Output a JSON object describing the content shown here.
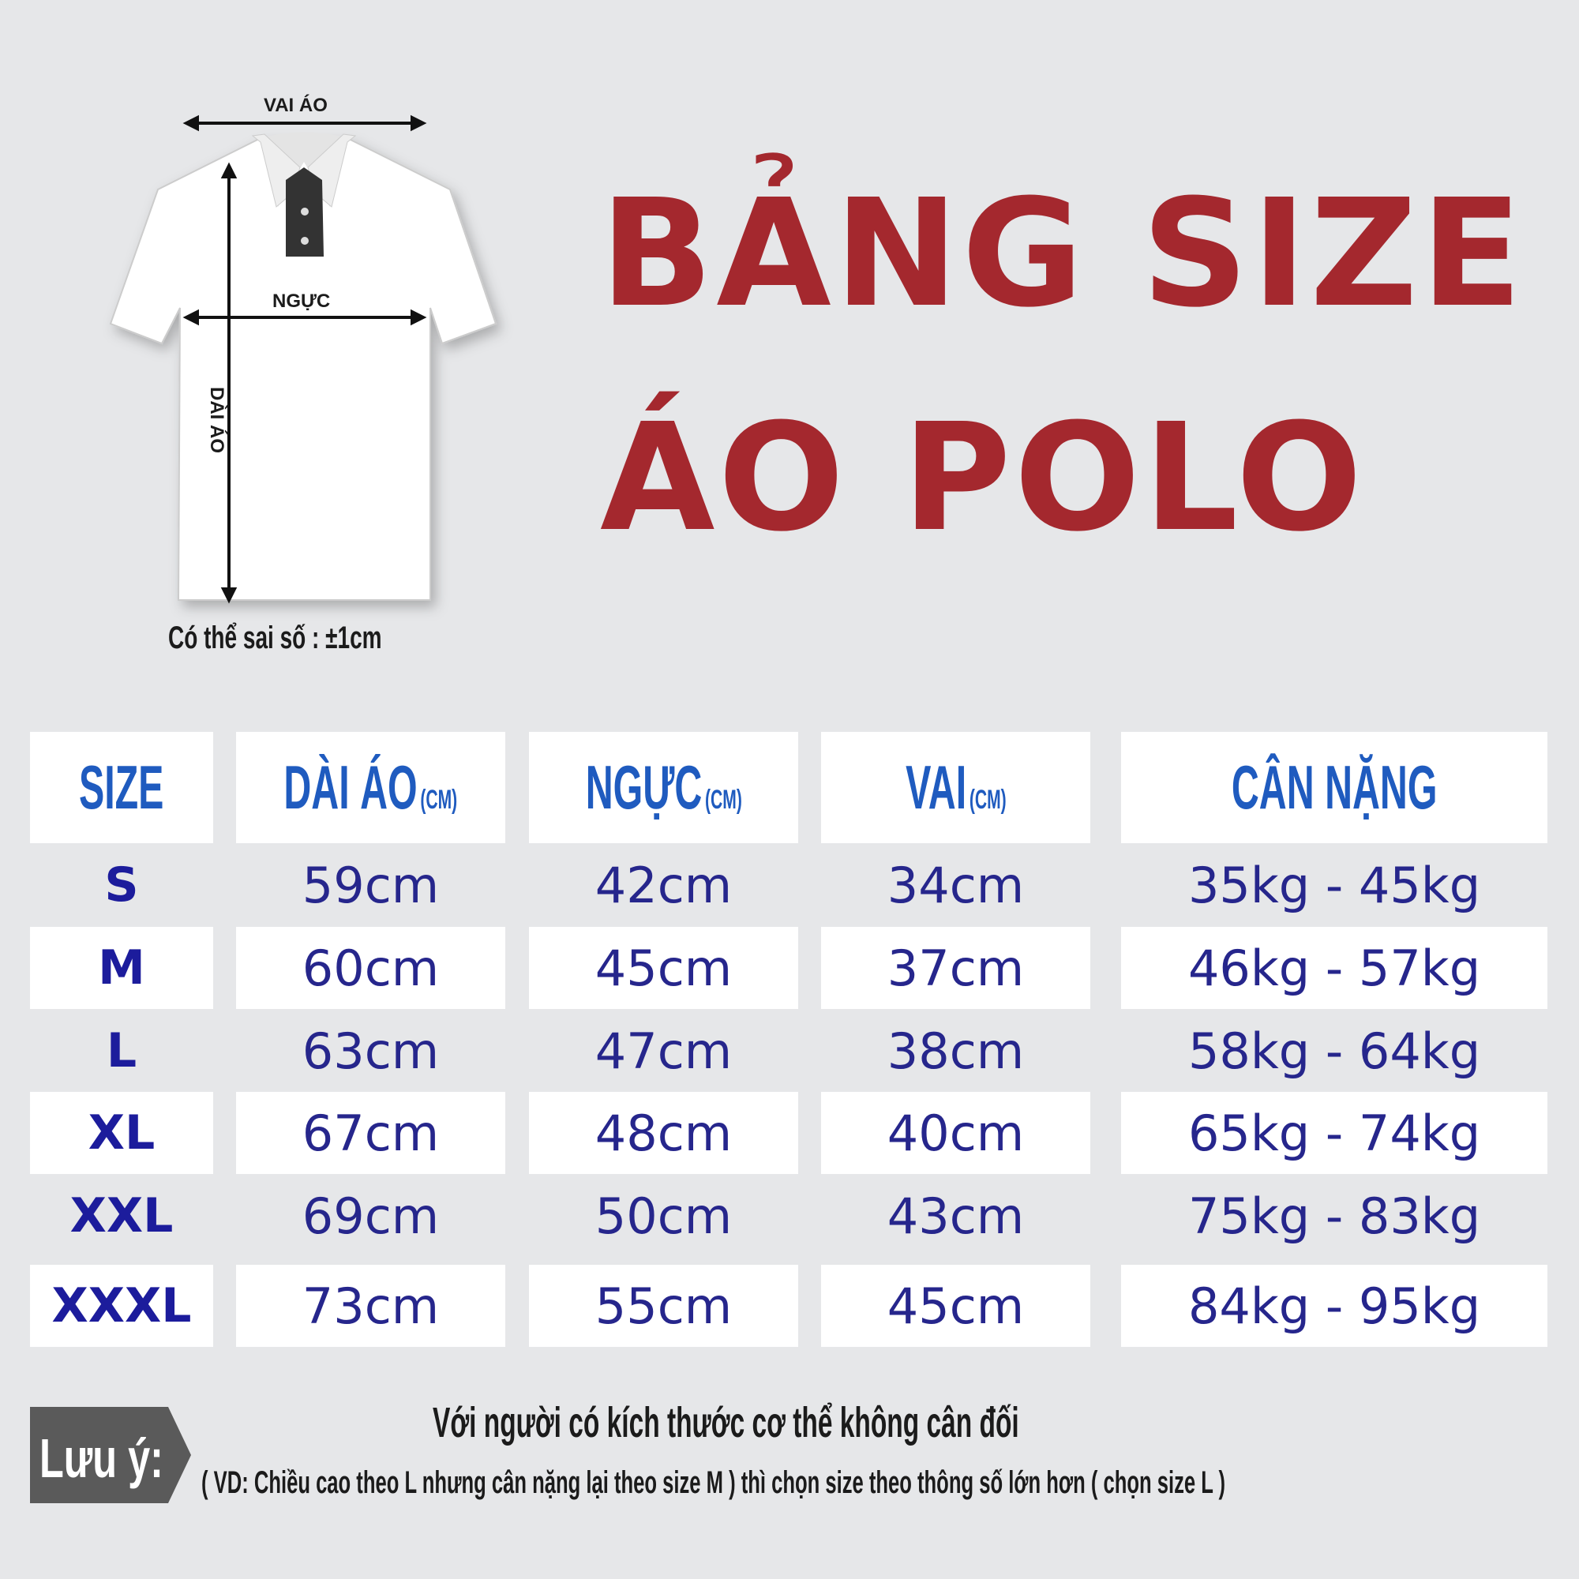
{
  "title": {
    "line1": "BẢNG SIZE",
    "line2": "ÁO POLO"
  },
  "diagram": {
    "shoulder": "VAI ÁO",
    "chest": "NGỰC",
    "length": "DÀI ÁO",
    "tolerance": "Có thể sai số : ±1cm"
  },
  "table": {
    "headers": [
      {
        "label": "SIZE",
        "unit": ""
      },
      {
        "label": "DÀI ÁO",
        "unit": "(CM)"
      },
      {
        "label": "NGỰC",
        "unit": "(CM)"
      },
      {
        "label": "VAI",
        "unit": "(CM)"
      },
      {
        "label": "CÂN NẶNG",
        "unit": ""
      }
    ],
    "rows": [
      [
        "S",
        "59cm",
        "42cm",
        "34cm",
        "35kg - 45kg"
      ],
      [
        "M",
        "60cm",
        "45cm",
        "37cm",
        "46kg - 57kg"
      ],
      [
        "L",
        "63cm",
        "47cm",
        "38cm",
        "58kg - 64kg"
      ],
      [
        "XL",
        "67cm",
        "48cm",
        "40cm",
        "65kg - 74kg"
      ],
      [
        "XXL",
        "69cm",
        "50cm",
        "43cm",
        "75kg - 83kg"
      ],
      [
        "XXXL",
        "73cm",
        "55cm",
        "45cm",
        "84kg - 95kg"
      ]
    ]
  },
  "note": {
    "label": "Lưu ý:",
    "line1": "Với người có kích thước cơ thể không cân đối",
    "line2": "( VD: Chiều cao theo L nhưng cân nặng lại theo size M ) thì chọn size theo thông số lớn hơn ( chọn size L )"
  },
  "colors": {
    "title": "#a4282e",
    "header": "#1f5bbf",
    "values": "#26268c",
    "note_bg": "#5a5a5a"
  }
}
